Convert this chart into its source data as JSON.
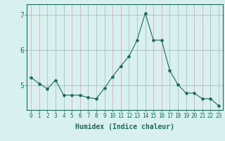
{
  "x": [
    0,
    1,
    2,
    3,
    4,
    5,
    6,
    7,
    8,
    9,
    10,
    11,
    12,
    13,
    14,
    15,
    16,
    17,
    18,
    19,
    20,
    21,
    22,
    23
  ],
  "y": [
    5.22,
    5.05,
    4.9,
    5.15,
    4.72,
    4.72,
    4.72,
    4.65,
    4.62,
    4.92,
    5.25,
    5.55,
    5.82,
    6.28,
    7.05,
    6.28,
    6.28,
    5.42,
    5.02,
    4.78,
    4.78,
    4.62,
    4.62,
    4.42
  ],
  "line_color": "#1a6b5a",
  "marker": "*",
  "marker_size": 3,
  "bg_color": "#d8f0f0",
  "grid_color": "#c8a8a8",
  "xlabel": "Humidex (Indice chaleur)",
  "xlim": [
    -0.5,
    23.5
  ],
  "ylim": [
    4.3,
    7.3
  ],
  "yticks": [
    5,
    6,
    7
  ],
  "xtick_labels": [
    "0",
    "1",
    "2",
    "3",
    "4",
    "5",
    "6",
    "7",
    "8",
    "9",
    "10",
    "11",
    "12",
    "13",
    "14",
    "15",
    "16",
    "17",
    "18",
    "19",
    "20",
    "21",
    "22",
    "23"
  ],
  "axis_color": "#1a6b5a",
  "tick_color": "#1a6b5a",
  "xlabel_fontsize": 7,
  "ytick_fontsize": 7,
  "xtick_fontsize": 5.5
}
